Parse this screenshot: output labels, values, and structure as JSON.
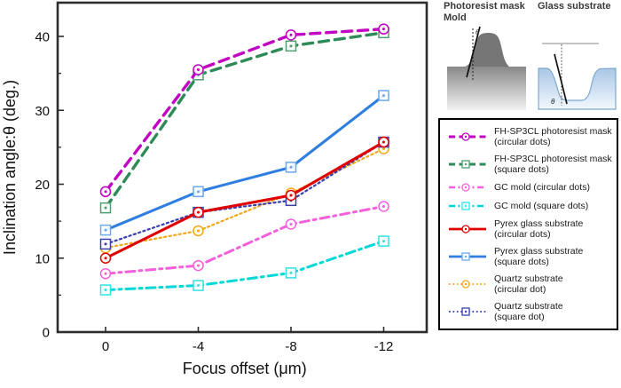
{
  "diagrams": {
    "mold": {
      "title_line1": "Photoresist mask",
      "title_line2": "Mold",
      "angle_symbol": "θ"
    },
    "glass": {
      "title": "Glass substrate",
      "angle_symbol": "θ"
    }
  },
  "chart_data": {
    "type": "line",
    "title": "",
    "xlabel": "Focus offset (μm)",
    "ylabel": "Inclination angle:θ (deg.)",
    "x": [
      0,
      -4,
      -8,
      -12
    ],
    "x_tick_labels": [
      "0",
      "-4",
      "-8",
      "-12"
    ],
    "y_ticks": [
      0,
      10,
      20,
      30,
      40
    ],
    "y_minor_ticks": [
      5,
      15,
      25,
      35
    ],
    "ylim": [
      0,
      44.5
    ],
    "grid": false,
    "legend_position": "outside-right",
    "draw_order": [
      3,
      2,
      6,
      7,
      1,
      0,
      5,
      4
    ],
    "series": [
      {
        "name": "FH-SP3CL photoresist mask (circular dots)",
        "legend": [
          "FH-SP3CL photoresist mask",
          "(circular dots)"
        ],
        "color": "#c303c3",
        "marker_color": "#c303c3",
        "line_style": "dashed",
        "marker": "circle",
        "values": [
          19.0,
          35.5,
          40.2,
          41.0
        ]
      },
      {
        "name": "FH-SP3CL photoresist mask (square dots)",
        "legend": [
          "FH-SP3CL photoresist mask",
          "(square dots)"
        ],
        "color": "#2e8b57",
        "marker_color": "#4f9e70",
        "line_style": "dashed",
        "marker": "square",
        "values": [
          16.8,
          34.8,
          38.7,
          40.5
        ]
      },
      {
        "name": "GC mold (circular dots)",
        "legend": [
          "GC mold (circular dots)"
        ],
        "color": "#f45fdc",
        "marker_color": "#f45fdc",
        "line_style": "dashdot",
        "marker": "circle",
        "values": [
          7.9,
          9.0,
          14.6,
          17.0
        ]
      },
      {
        "name": "GC mold (square dots)",
        "legend": [
          "GC mold (square dots)"
        ],
        "color": "#00d8d8",
        "marker_color": "#33e0e0",
        "line_style": "dashdot",
        "marker": "square",
        "values": [
          5.7,
          6.3,
          8.0,
          12.3
        ]
      },
      {
        "name": "Pyrex glass substrate (circular dots)",
        "legend": [
          "Pyrex glass substrate",
          "(circular dots)"
        ],
        "color": "#e00000",
        "marker_color": "#e00000",
        "line_style": "solid",
        "marker": "circle",
        "values": [
          10.0,
          16.2,
          18.5,
          25.7
        ]
      },
      {
        "name": "Pyrex glass substrate (square dots)",
        "legend": [
          "Pyrex glass substrate",
          "(square dots)"
        ],
        "color": "#2f7fe0",
        "marker_color": "#6da8ec",
        "line_style": "solid",
        "marker": "square",
        "values": [
          13.8,
          19.0,
          22.3,
          32.0
        ]
      },
      {
        "name": "Quartz substrate (circular dot)",
        "legend": [
          "Quartz substrate",
          "(circular dot)"
        ],
        "color": "#f2a71a",
        "marker_color": "#f2a71a",
        "line_style": "dotted",
        "marker": "circle",
        "values": [
          11.4,
          13.7,
          18.8,
          24.8
        ]
      },
      {
        "name": "Quartz substrate (square dot)",
        "legend": [
          "Quartz substrate",
          "(square dot)"
        ],
        "color": "#3a3fae",
        "marker_color": "#3a3fae",
        "line_style": "dotted",
        "marker": "square",
        "values": [
          11.9,
          16.2,
          17.8,
          25.7
        ]
      }
    ]
  }
}
